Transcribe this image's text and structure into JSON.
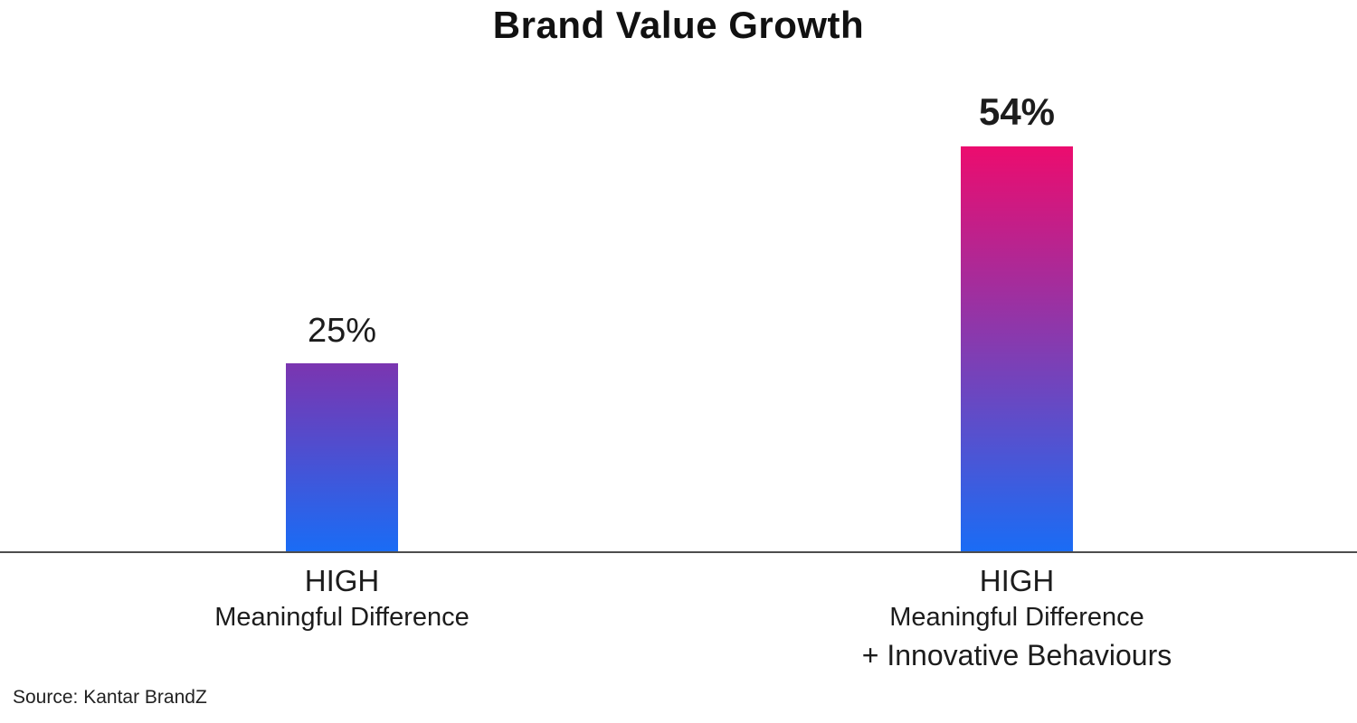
{
  "title": "Brand Value Growth",
  "source": "Source: Kantar BrandZ",
  "axis_color": "#4d4d4d",
  "chart_data": {
    "type": "bar",
    "title": "Brand Value Growth",
    "xlabel": "",
    "ylabel": "",
    "ylim": [
      0,
      60
    ],
    "grid": false,
    "legend": false,
    "categories": [
      "HIGH Meaningful Difference",
      "HIGH Meaningful Difference + Innovative Behaviours"
    ],
    "values": [
      25,
      54
    ],
    "bars": [
      {
        "value": 25,
        "value_label": "25%",
        "label_line1": "HIGH",
        "label_line2": "Meaningful Difference",
        "gradient_top": "#7b35b0",
        "gradient_bottom": "#1a6cf5"
      },
      {
        "value": 54,
        "value_label": "54%",
        "label_line1": "HIGH",
        "label_line2": "Meaningful Difference",
        "label_line3": "+ Innovative Behaviours",
        "gradient_top": "#ec0c6e",
        "gradient_bottom": "#1a6cf5"
      }
    ]
  }
}
